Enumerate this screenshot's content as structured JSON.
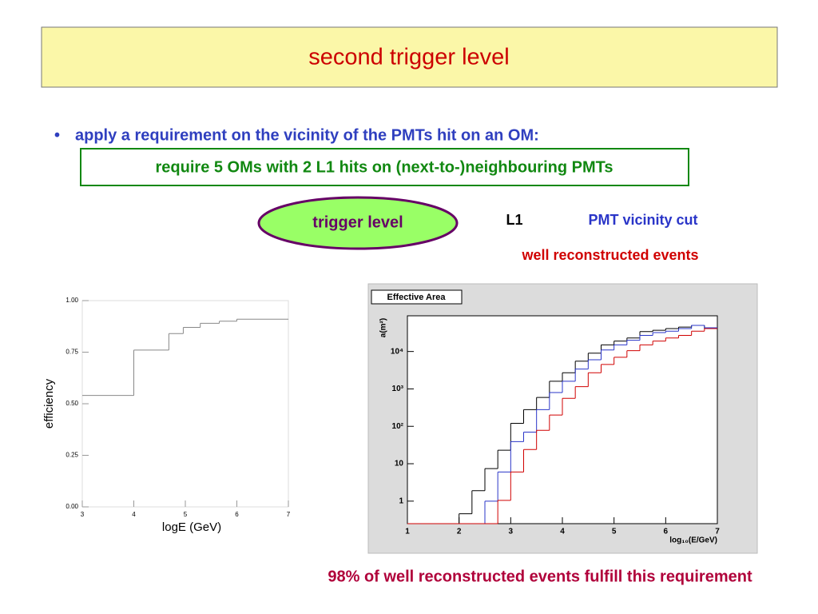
{
  "header": {
    "title": "second trigger level"
  },
  "bullet": "apply a requirement on the vicinity of the PMTs hit on an OM:",
  "box": "require 5 OMs with 2 L1 hits on (next-to-)neighbouring PMTs",
  "footer": "98% of well reconstructed events fulfill this requirement",
  "chart_data": [
    {
      "type": "histogram",
      "xlabel": "logE (GeV)",
      "ylabel": "efficiency",
      "bins": [
        3,
        4,
        4.68,
        4.96,
        5.29,
        5.66,
        6,
        7
      ],
      "values": [
        0.54,
        0.76,
        0.84,
        0.87,
        0.89,
        0.9,
        0.91
      ],
      "color": "#888888",
      "xlim": [
        3,
        7
      ],
      "ylim": [
        0,
        1
      ],
      "xticks": [
        3,
        4,
        5,
        6,
        7
      ],
      "yticks": [
        {
          "value": 0,
          "label": "0.00"
        },
        {
          "value": 0.25,
          "label": "0.25"
        },
        {
          "value": 0.5,
          "label": "0.50"
        },
        {
          "value": 0.75,
          "label": "0.75"
        },
        {
          "value": 1,
          "label": "1.00"
        }
      ]
    },
    {
      "type": "histogram",
      "title": "Effective Area",
      "xlabel": "log₁₀(E/GeV)",
      "ylabel": "a(m²)",
      "legend_title": "trigger level",
      "log_y": true,
      "bins": [
        1,
        1.25,
        1.5,
        1.75,
        2,
        2.25,
        2.5,
        2.75,
        3,
        3.25,
        3.5,
        3.75,
        4,
        4.25,
        4.5,
        4.75,
        5,
        5.25,
        5.5,
        5.75,
        6,
        6.25,
        6.5,
        6.75,
        7
      ],
      "series": [
        {
          "name": "L1",
          "color": "#000000",
          "values": [
            0,
            0,
            0,
            0,
            0.46,
            1.9,
            7.4,
            23,
            120,
            280,
            590,
            1600,
            2700,
            5500,
            9000,
            15000,
            19000,
            23000,
            34000,
            37000,
            41000,
            45000,
            50000,
            41000
          ]
        },
        {
          "name": "PMT vicinity cut",
          "color": "#2a35c8",
          "values": [
            0,
            0,
            0,
            0,
            0,
            0,
            1,
            6,
            39,
            70,
            280,
            800,
            1600,
            3400,
            6000,
            11000,
            15000,
            20000,
            27000,
            32000,
            35000,
            41000,
            50000,
            43000
          ]
        },
        {
          "name": "well reconstructed events",
          "color": "#d00000",
          "values": [
            0,
            0,
            0,
            0,
            0,
            0,
            0,
            1.05,
            6,
            24,
            78,
            200,
            560,
            1150,
            2700,
            4500,
            7000,
            10500,
            15000,
            19000,
            23000,
            27000,
            35000,
            41000
          ]
        }
      ],
      "xlim": [
        1,
        7
      ],
      "ylim": [
        0.25,
        90000
      ],
      "xticks": [
        1,
        2,
        3,
        4,
        5,
        6,
        7
      ],
      "yticks": [
        1,
        10,
        {
          "value": 100,
          "label": "10²"
        },
        {
          "value": 1000,
          "label": "10³"
        },
        {
          "value": 10000,
          "label": "10⁴"
        }
      ]
    }
  ]
}
